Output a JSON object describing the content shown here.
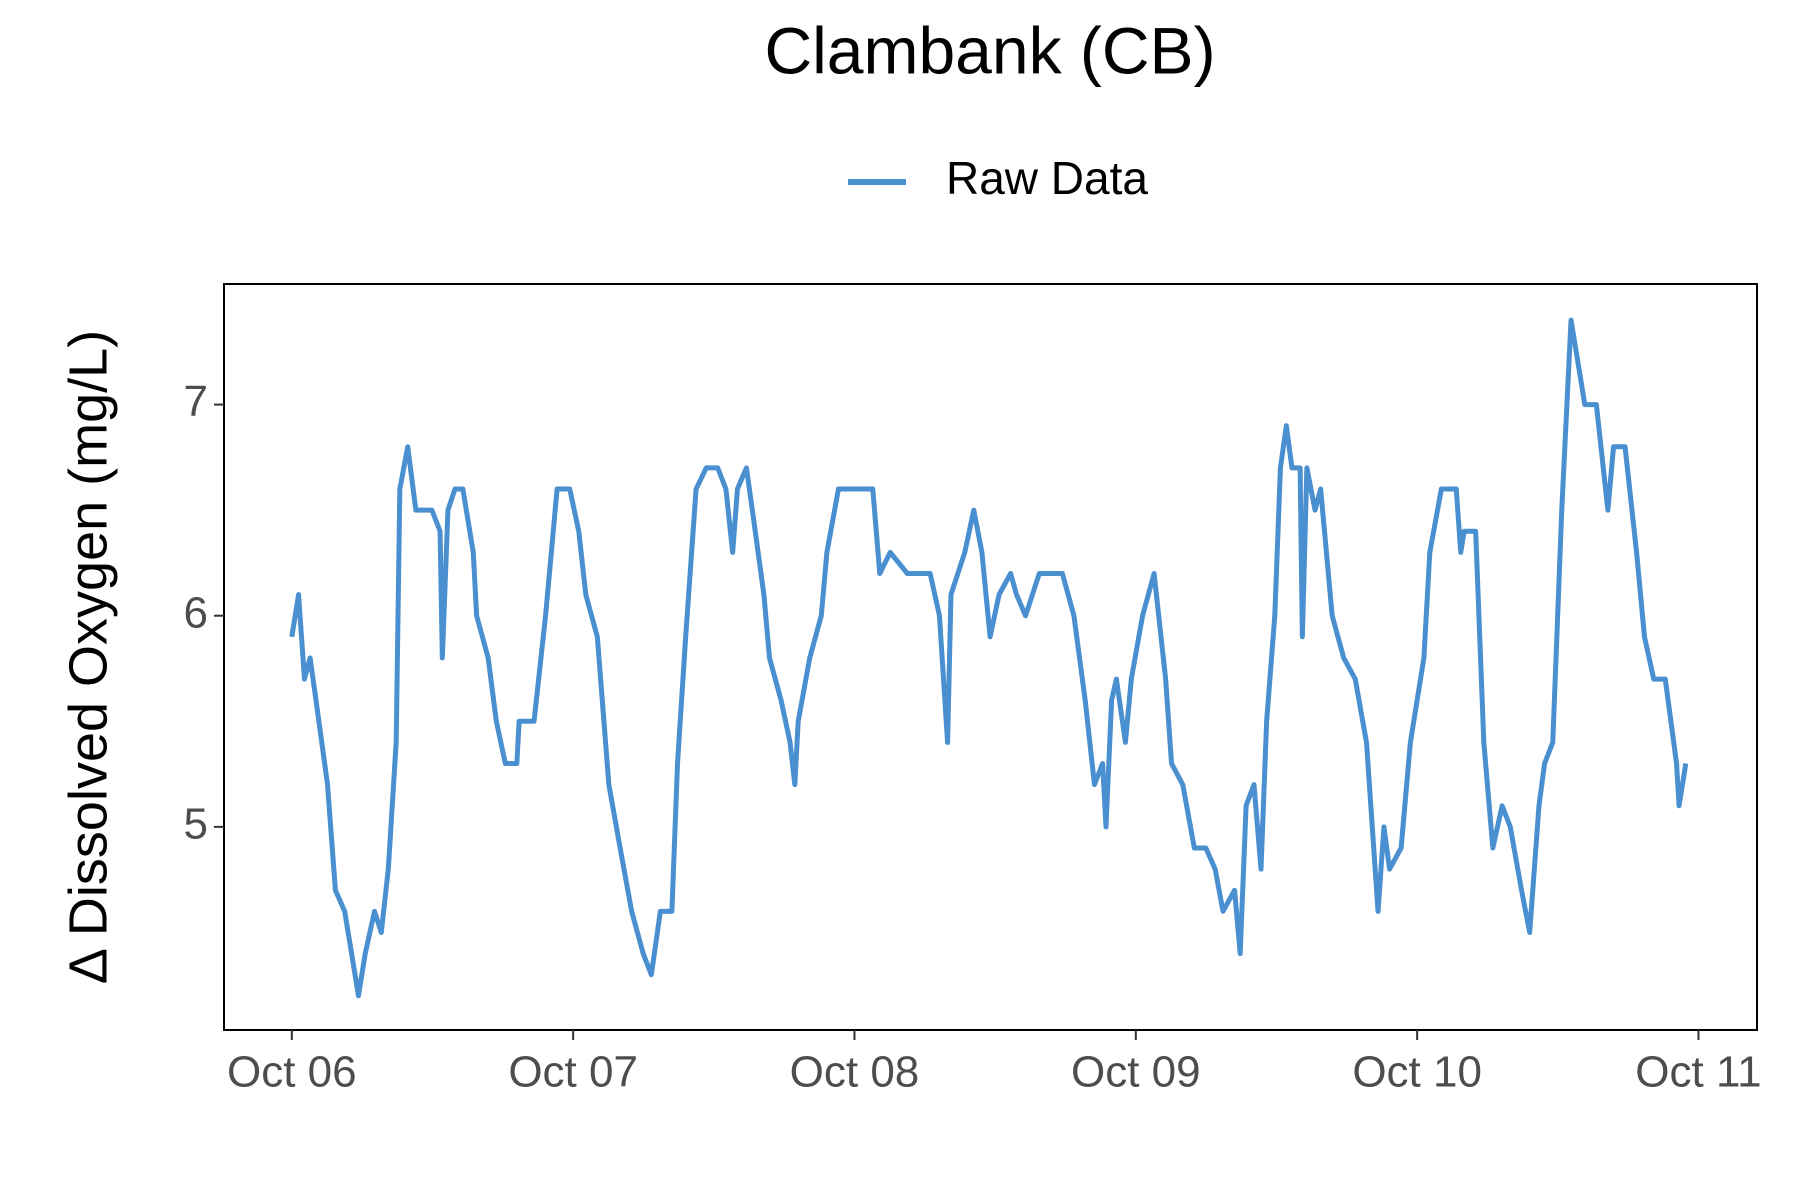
{
  "chart_data": {
    "type": "line",
    "title": "Clambank (CB)",
    "ylabel": "Δ Dissolved Oxygen (mg/L)",
    "x": [
      6.0,
      6.024,
      6.045,
      6.065,
      6.086,
      6.127,
      6.155,
      6.188,
      6.237,
      6.261,
      6.294,
      6.318,
      6.343,
      6.371,
      6.384,
      6.412,
      6.441,
      6.498,
      6.527,
      6.535,
      6.555,
      6.58,
      6.608,
      6.645,
      6.657,
      6.698,
      6.727,
      6.759,
      6.8,
      6.808,
      6.861,
      6.902,
      6.943,
      6.988,
      7.02,
      7.045,
      7.086,
      7.127,
      7.167,
      7.208,
      7.249,
      7.278,
      7.31,
      7.351,
      7.371,
      7.4,
      7.437,
      7.473,
      7.514,
      7.543,
      7.567,
      7.584,
      7.616,
      7.637,
      7.678,
      7.698,
      7.739,
      7.771,
      7.788,
      7.8,
      7.841,
      7.882,
      7.902,
      7.943,
      8.065,
      8.09,
      8.127,
      8.188,
      8.269,
      8.302,
      8.331,
      8.343,
      8.392,
      8.424,
      8.453,
      8.482,
      8.514,
      8.555,
      8.576,
      8.608,
      8.657,
      8.739,
      8.78,
      8.82,
      8.853,
      8.882,
      8.894,
      8.914,
      8.931,
      8.963,
      8.984,
      9.024,
      9.065,
      9.106,
      9.127,
      9.167,
      9.208,
      9.249,
      9.282,
      9.31,
      9.351,
      9.371,
      9.392,
      9.42,
      9.445,
      9.465,
      9.494,
      9.514,
      9.535,
      9.555,
      9.584,
      9.592,
      9.608,
      9.637,
      9.657,
      9.698,
      9.739,
      9.78,
      9.82,
      9.861,
      9.882,
      9.902,
      9.943,
      9.976,
      10.024,
      10.045,
      10.086,
      10.139,
      10.155,
      10.167,
      10.208,
      10.237,
      10.269,
      10.302,
      10.331,
      10.371,
      10.4,
      10.433,
      10.453,
      10.482,
      10.514,
      10.547,
      10.596,
      10.637,
      10.678,
      10.698,
      10.739,
      10.78,
      10.808,
      10.841,
      10.882,
      10.922,
      10.931,
      10.955
    ],
    "series": [
      {
        "name": "Raw Data",
        "color": "#4a8fcf",
        "values": [
          5.9,
          6.1,
          5.7,
          5.8,
          5.6,
          5.2,
          4.7,
          4.6,
          4.2,
          4.4,
          4.6,
          4.5,
          4.8,
          5.4,
          6.6,
          6.8,
          6.5,
          6.5,
          6.4,
          5.8,
          6.5,
          6.6,
          6.6,
          6.3,
          6.0,
          5.8,
          5.5,
          5.3,
          5.3,
          5.5,
          5.5,
          6.0,
          6.6,
          6.6,
          6.4,
          6.1,
          5.9,
          5.2,
          4.9,
          4.6,
          4.4,
          4.3,
          4.6,
          4.6,
          5.3,
          5.9,
          6.6,
          6.7,
          6.7,
          6.6,
          6.3,
          6.6,
          6.7,
          6.5,
          6.1,
          5.8,
          5.6,
          5.4,
          5.2,
          5.5,
          5.8,
          6.0,
          6.3,
          6.6,
          6.6,
          6.2,
          6.3,
          6.2,
          6.2,
          6.0,
          5.4,
          6.1,
          6.3,
          6.5,
          6.3,
          5.9,
          6.1,
          6.2,
          6.1,
          6.0,
          6.2,
          6.2,
          6.0,
          5.6,
          5.2,
          5.3,
          5.0,
          5.6,
          5.7,
          5.4,
          5.7,
          6.0,
          6.2,
          5.7,
          5.3,
          5.2,
          4.9,
          4.9,
          4.8,
          4.6,
          4.7,
          4.4,
          5.1,
          5.2,
          4.8,
          5.5,
          6.0,
          6.7,
          6.9,
          6.7,
          6.7,
          5.9,
          6.7,
          6.5,
          6.6,
          6.0,
          5.8,
          5.7,
          5.4,
          4.6,
          5.0,
          4.8,
          4.9,
          5.4,
          5.8,
          6.3,
          6.6,
          6.6,
          6.3,
          6.4,
          6.4,
          5.4,
          4.9,
          5.1,
          5.0,
          4.7,
          4.5,
          5.1,
          5.3,
          5.4,
          6.5,
          7.4,
          7.0,
          7.0,
          6.5,
          6.8,
          6.8,
          6.3,
          5.9,
          5.7,
          5.7,
          5.3,
          5.1,
          5.3
        ]
      }
    ],
    "xlim": [
      5.759,
      11.208
    ],
    "ylim": [
      4.038,
      7.571
    ],
    "xticks": [
      {
        "value": 6,
        "label": "Oct 06"
      },
      {
        "value": 7,
        "label": "Oct 07"
      },
      {
        "value": 8,
        "label": "Oct 08"
      },
      {
        "value": 9,
        "label": "Oct 09"
      },
      {
        "value": 10,
        "label": "Oct 10"
      },
      {
        "value": 11,
        "label": "Oct 11"
      }
    ],
    "yticks": [
      5,
      6,
      7
    ],
    "legend": "top"
  }
}
